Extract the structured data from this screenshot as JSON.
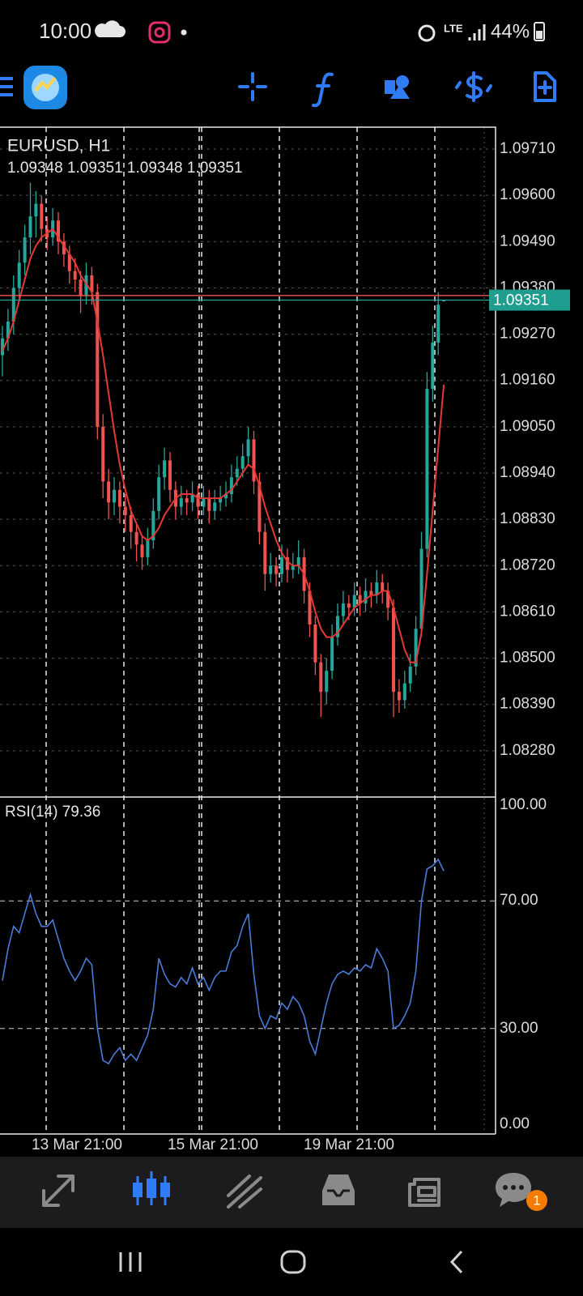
{
  "status_bar": {
    "time": "10:00",
    "network": "LTE",
    "battery": "44%"
  },
  "bottom_nav": {
    "chat_badge": "1"
  },
  "chart_data": {
    "type": "candlestick",
    "title": "EURUSD, H1",
    "ohlc_text": "1.09348 1.09351 1.09348 1.09351",
    "bull_color": "#26a69a",
    "bear_color": "#ef5350",
    "ylim": [
      1.0817,
      1.09762
    ],
    "yticks": [
      {
        "value": 1.0971,
        "label": "1.09710"
      },
      {
        "value": 1.096,
        "label": "1.09600"
      },
      {
        "value": 1.0949,
        "label": "1.09490"
      },
      {
        "value": 1.0938,
        "label": "1.09380"
      },
      {
        "value": 1.0927,
        "label": "1.09270"
      },
      {
        "value": 1.0916,
        "label": "1.09160"
      },
      {
        "value": 1.0905,
        "label": "1.09050"
      },
      {
        "value": 1.0894,
        "label": "1.08940"
      },
      {
        "value": 1.0883,
        "label": "1.08830"
      },
      {
        "value": 1.0872,
        "label": "1.08720"
      },
      {
        "value": 1.0861,
        "label": "1.08610"
      },
      {
        "value": 1.085,
        "label": "1.08500"
      },
      {
        "value": 1.0839,
        "label": "1.08390"
      },
      {
        "value": 1.0828,
        "label": "1.08280"
      }
    ],
    "grid": true,
    "x_labels": [
      "13 Mar 21:00",
      "15 Mar 21:00",
      "19 Mar 21:00"
    ],
    "bid": {
      "value": 1.09351,
      "label": "1.09351"
    },
    "ask": 1.09362,
    "candles": [
      [
        1.0922,
        1.0929,
        1.0917,
        1.0926
      ],
      [
        1.0926,
        1.0933,
        1.0923,
        1.093
      ],
      [
        1.093,
        1.0941,
        1.0927,
        1.0938
      ],
      [
        1.0938,
        1.0947,
        1.0935,
        1.0944
      ],
      [
        1.0944,
        1.0953,
        1.0941,
        1.095
      ],
      [
        1.095,
        1.0963,
        1.0946,
        1.0955
      ],
      [
        1.0955,
        1.0961,
        1.095,
        1.0958
      ],
      [
        1.0958,
        1.096,
        1.0949,
        1.0952
      ],
      [
        1.0952,
        1.0955,
        1.0947,
        1.095
      ],
      [
        1.095,
        1.0957,
        1.0948,
        1.0954
      ],
      [
        1.0954,
        1.0956,
        1.0946,
        1.0949
      ],
      [
        1.0949,
        1.0951,
        1.0943,
        1.0946
      ],
      [
        1.0946,
        1.0948,
        1.0939,
        1.0942
      ],
      [
        1.0942,
        1.0945,
        1.0937,
        1.094
      ],
      [
        1.094,
        1.0942,
        1.0932,
        1.0936
      ],
      [
        1.0936,
        1.0944,
        1.0934,
        1.0941
      ],
      [
        1.0941,
        1.0943,
        1.0934,
        1.0937
      ],
      [
        1.0937,
        1.0939,
        1.0902,
        1.0905
      ],
      [
        1.0905,
        1.0908,
        1.0888,
        1.0892
      ],
      [
        1.0892,
        1.0895,
        1.0883,
        1.0887
      ],
      [
        1.0887,
        1.0893,
        1.0884,
        1.089
      ],
      [
        1.089,
        1.0892,
        1.0882,
        1.0886
      ],
      [
        1.0886,
        1.0889,
        1.088,
        1.0884
      ],
      [
        1.0884,
        1.0886,
        1.0876,
        1.088
      ],
      [
        1.088,
        1.0882,
        1.0873,
        1.0877
      ],
      [
        1.0877,
        1.0879,
        1.0871,
        1.0874
      ],
      [
        1.0874,
        1.0881,
        1.0872,
        1.0878
      ],
      [
        1.0878,
        1.0888,
        1.0876,
        1.0885
      ],
      [
        1.0885,
        1.0896,
        1.0883,
        1.0893
      ],
      [
        1.0893,
        1.09,
        1.089,
        1.0897
      ],
      [
        1.0897,
        1.0899,
        1.0887,
        1.089
      ],
      [
        1.089,
        1.0892,
        1.0883,
        1.0886
      ],
      [
        1.0886,
        1.0891,
        1.0884,
        1.0888
      ],
      [
        1.0888,
        1.089,
        1.0884,
        1.0887
      ],
      [
        1.0887,
        1.0892,
        1.0885,
        1.0889
      ],
      [
        1.0889,
        1.0891,
        1.0883,
        1.0886
      ],
      [
        1.0886,
        1.0891,
        1.0884,
        1.0888
      ],
      [
        1.0888,
        1.089,
        1.0882,
        1.0885
      ],
      [
        1.0885,
        1.089,
        1.0883,
        1.0887
      ],
      [
        1.0887,
        1.0891,
        1.0885,
        1.0888
      ],
      [
        1.0888,
        1.0892,
        1.0886,
        1.0889
      ],
      [
        1.0889,
        1.0896,
        1.0887,
        1.0893
      ],
      [
        1.0893,
        1.0898,
        1.0891,
        1.0895
      ],
      [
        1.0895,
        1.0901,
        1.0893,
        1.0898
      ],
      [
        1.0898,
        1.0905,
        1.0896,
        1.0902
      ],
      [
        1.0902,
        1.0904,
        1.0889,
        1.0892
      ],
      [
        1.0892,
        1.0894,
        1.0877,
        1.088
      ],
      [
        1.088,
        1.0882,
        1.0866,
        1.087
      ],
      [
        1.087,
        1.0875,
        1.0868,
        1.0872
      ],
      [
        1.0872,
        1.0874,
        1.0867,
        1.087
      ],
      [
        1.087,
        1.0877,
        1.0868,
        1.0874
      ],
      [
        1.0874,
        1.0876,
        1.0868,
        1.0871
      ],
      [
        1.0871,
        1.0875,
        1.0869,
        1.0872
      ],
      [
        1.0872,
        1.0878,
        1.087,
        1.0874
      ],
      [
        1.0874,
        1.0876,
        1.0863,
        1.0866
      ],
      [
        1.0866,
        1.0868,
        1.0855,
        1.0858
      ],
      [
        1.0858,
        1.086,
        1.0846,
        1.0849
      ],
      [
        1.0849,
        1.0851,
        1.0836,
        1.0842
      ],
      [
        1.0842,
        1.085,
        1.0839,
        1.0847
      ],
      [
        1.0847,
        1.0858,
        1.0845,
        1.0855
      ],
      [
        1.0855,
        1.0863,
        1.0853,
        1.086
      ],
      [
        1.086,
        1.0866,
        1.0858,
        1.0863
      ],
      [
        1.0863,
        1.0865,
        1.0859,
        1.0862
      ],
      [
        1.0862,
        1.0868,
        1.086,
        1.0865
      ],
      [
        1.0865,
        1.0867,
        1.086,
        1.0863
      ],
      [
        1.0863,
        1.0869,
        1.0861,
        1.0866
      ],
      [
        1.0866,
        1.0868,
        1.0862,
        1.0865
      ],
      [
        1.0865,
        1.0871,
        1.0863,
        1.0868
      ],
      [
        1.0868,
        1.087,
        1.0863,
        1.0866
      ],
      [
        1.0866,
        1.0868,
        1.0859,
        1.0862
      ],
      [
        1.0862,
        1.0864,
        1.0836,
        1.0842
      ],
      [
        1.0842,
        1.0845,
        1.0837,
        1.084
      ],
      [
        1.084,
        1.0847,
        1.0838,
        1.0844
      ],
      [
        1.0844,
        1.0851,
        1.0842,
        1.0848
      ],
      [
        1.0848,
        1.086,
        1.0846,
        1.0857
      ],
      [
        1.0857,
        1.088,
        1.0855,
        1.0876
      ],
      [
        1.0876,
        1.0918,
        1.0874,
        1.0914
      ],
      [
        1.0914,
        1.0929,
        1.0911,
        1.0925
      ],
      [
        1.0925,
        1.0937,
        1.0922,
        1.0934
      ],
      [
        1.09348,
        1.09351,
        1.09348,
        1.09351
      ]
    ],
    "ma": {
      "color": "#e53935",
      "values": [
        1.0923,
        1.0926,
        1.093,
        1.0935,
        1.094,
        1.0945,
        1.0948,
        1.095,
        1.0951,
        1.0952,
        1.095,
        1.0948,
        1.0946,
        1.0944,
        1.0941,
        1.0939,
        1.0937,
        1.093,
        1.0922,
        1.0913,
        1.0904,
        1.0896,
        1.089,
        1.0885,
        1.0882,
        1.0879,
        1.0878,
        1.0879,
        1.0881,
        1.0884,
        1.0886,
        1.0888,
        1.0889,
        1.0889,
        1.0889,
        1.0888,
        1.0888,
        1.0888,
        1.0888,
        1.0888,
        1.0889,
        1.089,
        1.0892,
        1.0894,
        1.0896,
        1.0895,
        1.0891,
        1.0886,
        1.0882,
        1.0878,
        1.0875,
        1.0873,
        1.0872,
        1.0872,
        1.087,
        1.0866,
        1.0861,
        1.0857,
        1.0855,
        1.0855,
        1.0856,
        1.0858,
        1.086,
        1.0862,
        1.0863,
        1.0864,
        1.0865,
        1.0865,
        1.0866,
        1.0866,
        1.0862,
        1.0857,
        1.0852,
        1.0849,
        1.0849,
        1.0856,
        1.087,
        1.0885,
        1.09,
        1.0915
      ]
    },
    "rsi": {
      "label": "RSI(14) 79.36",
      "color": "#4a7bd9",
      "ylim": [
        0,
        100
      ],
      "yticks": [
        {
          "value": 100,
          "label": "100.00"
        },
        {
          "value": 70,
          "label": "70.00"
        },
        {
          "value": 30,
          "label": "30.00"
        },
        {
          "value": 0,
          "label": "0.00"
        }
      ],
      "values": [
        45,
        55,
        62,
        60,
        66,
        72,
        66,
        62,
        62,
        64,
        58,
        52,
        48,
        45,
        48,
        52,
        50,
        30,
        20,
        19,
        22,
        24,
        20,
        22,
        20,
        24,
        28,
        36,
        52,
        47,
        44,
        43,
        46,
        44,
        49,
        44,
        46,
        42,
        46,
        48,
        48,
        54,
        56,
        62,
        66,
        47,
        34,
        30,
        34,
        33,
        38,
        36,
        40,
        38,
        34,
        26,
        22,
        30,
        38,
        44,
        47,
        48,
        47,
        49,
        48,
        50,
        49,
        55,
        52,
        48,
        30,
        31,
        34,
        38,
        48,
        70,
        80,
        81,
        83,
        79.36
      ]
    }
  }
}
